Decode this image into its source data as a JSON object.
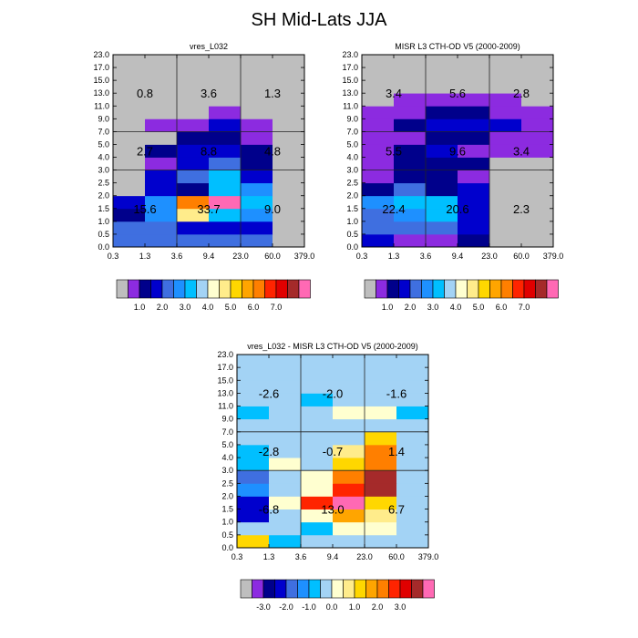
{
  "figure": {
    "title": "SH Mid-Lats JJA"
  },
  "x_tick_labels": [
    "0.3",
    "1.3",
    "3.6",
    "9.4",
    "23.0",
    "60.0",
    "379.0"
  ],
  "y_tick_labels": [
    "0.0",
    "0.5",
    "1.0",
    "1.5",
    "2.0",
    "2.5",
    "3.0",
    "4.0",
    "5.0",
    "7.0",
    "9.0",
    "11.0",
    "13.0",
    "15.0",
    "17.0",
    "23.0"
  ],
  "palette": {
    "abs": [
      "#bebebe",
      "#8c2be0",
      "#00008b",
      "#0000cd",
      "#3f6fe0",
      "#1e90ff",
      "#00bfff",
      "#a3d3f5",
      "#ffffd0",
      "#ffec8b",
      "#ffd700",
      "#ffa500",
      "#ff7f00",
      "#ff2400",
      "#e00000",
      "#a52a2a",
      "#ff69b4"
    ],
    "diff": [
      "#bebebe",
      "#8c2be0",
      "#00008b",
      "#0000cd",
      "#3f6fe0",
      "#1e90ff",
      "#00bfff",
      "#a3d3f5",
      "#ffffd0",
      "#ffec8b",
      "#ffd700",
      "#ffa500",
      "#ff7f00",
      "#ff2400",
      "#e00000",
      "#a52a2a",
      "#ff69b4"
    ]
  },
  "colorbars": {
    "abs": [
      "1.0",
      "2.0",
      "3.0",
      "4.0",
      "5.0",
      "6.0",
      "7.0"
    ],
    "diff": [
      "-3.0",
      "-2.0",
      "-1.0",
      "0.0",
      "1.0",
      "2.0",
      "3.0"
    ]
  },
  "chart_data": [
    {
      "type": "heatmap",
      "title": "vres_L032",
      "x_bins": [
        0.3,
        1.3,
        3.6,
        9.4,
        23.0,
        60.0,
        379.0
      ],
      "y_bins": [
        0.0,
        0.5,
        1.0,
        1.5,
        2.0,
        2.5,
        3.0,
        4.0,
        5.0,
        7.0,
        9.0,
        11.0,
        13.0,
        15.0,
        17.0,
        23.0
      ],
      "grid_levels": [
        [
          4,
          4,
          4,
          4,
          4,
          0
        ],
        [
          4,
          4,
          3,
          3,
          3,
          0
        ],
        [
          2,
          5,
          9,
          6,
          5,
          0
        ],
        [
          3,
          5,
          12,
          16,
          6,
          0
        ],
        [
          0,
          3,
          2,
          6,
          5,
          0
        ],
        [
          0,
          3,
          4,
          6,
          3,
          0
        ],
        [
          0,
          1,
          3,
          4,
          2,
          0
        ],
        [
          0,
          2,
          3,
          3,
          2,
          0
        ],
        [
          0,
          0,
          2,
          2,
          1,
          0
        ],
        [
          0,
          1,
          1,
          3,
          1,
          0
        ],
        [
          0,
          0,
          0,
          1,
          0,
          0
        ],
        [
          0,
          0,
          0,
          0,
          0,
          0
        ],
        [
          0,
          0,
          0,
          0,
          0,
          0
        ],
        [
          0,
          0,
          0,
          0,
          0,
          0
        ],
        [
          0,
          0,
          0,
          0,
          0,
          0
        ]
      ],
      "totals": [
        {
          "label": "0.8",
          "col": 0,
          "row": "top"
        },
        {
          "label": "3.6",
          "col": 1,
          "row": "top"
        },
        {
          "label": "1.3",
          "col": 2,
          "row": "top"
        },
        {
          "label": "2.7",
          "col": 0,
          "row": "mid"
        },
        {
          "label": "8.8",
          "col": 1,
          "row": "mid"
        },
        {
          "label": "4.8",
          "col": 2,
          "row": "mid"
        },
        {
          "label": "15.6",
          "col": 0,
          "row": "low"
        },
        {
          "label": "33.7",
          "col": 1,
          "row": "low"
        },
        {
          "label": "9.0",
          "col": 2,
          "row": "low"
        }
      ]
    },
    {
      "type": "heatmap",
      "title": "MISR L3 CTH-OD V5 (2000-2009)",
      "x_bins": [
        0.3,
        1.3,
        3.6,
        9.4,
        23.0,
        60.0,
        379.0
      ],
      "y_bins": [
        0.0,
        0.5,
        1.0,
        1.5,
        2.0,
        2.5,
        3.0,
        4.0,
        5.0,
        7.0,
        9.0,
        11.0,
        13.0,
        15.0,
        17.0,
        23.0
      ],
      "grid_levels": [
        [
          3,
          1,
          1,
          2,
          0,
          0
        ],
        [
          4,
          4,
          4,
          3,
          0,
          0
        ],
        [
          4,
          5,
          6,
          3,
          0,
          0
        ],
        [
          5,
          6,
          6,
          3,
          0,
          0
        ],
        [
          2,
          4,
          2,
          3,
          0,
          0
        ],
        [
          1,
          2,
          2,
          1,
          0,
          0
        ],
        [
          1,
          2,
          2,
          2,
          0,
          0
        ],
        [
          1,
          2,
          3,
          1,
          1,
          1
        ],
        [
          1,
          1,
          2,
          2,
          1,
          1
        ],
        [
          1,
          2,
          3,
          3,
          3,
          1
        ],
        [
          1,
          1,
          2,
          2,
          1,
          1
        ],
        [
          0,
          1,
          1,
          1,
          1,
          0
        ],
        [
          0,
          0,
          0,
          0,
          0,
          0
        ],
        [
          0,
          0,
          0,
          0,
          0,
          0
        ],
        [
          0,
          0,
          0,
          0,
          0,
          0
        ]
      ],
      "totals": [
        {
          "label": "3.4",
          "col": 0,
          "row": "top"
        },
        {
          "label": "5.6",
          "col": 1,
          "row": "top"
        },
        {
          "label": "2.8",
          "col": 2,
          "row": "top"
        },
        {
          "label": "5.5",
          "col": 0,
          "row": "mid"
        },
        {
          "label": "9.6",
          "col": 1,
          "row": "mid"
        },
        {
          "label": "3.4",
          "col": 2,
          "row": "mid"
        },
        {
          "label": "22.4",
          "col": 0,
          "row": "low"
        },
        {
          "label": "20.6",
          "col": 1,
          "row": "low"
        },
        {
          "label": "2.3",
          "col": 2,
          "row": "low"
        }
      ]
    },
    {
      "type": "heatmap",
      "title": "vres_L032 - MISR L3 CTH-OD V5 (2000-2009)",
      "x_bins": [
        0.3,
        1.3,
        3.6,
        9.4,
        23.0,
        60.0,
        379.0
      ],
      "y_bins": [
        0.0,
        0.5,
        1.0,
        1.5,
        2.0,
        2.5,
        3.0,
        4.0,
        5.0,
        7.0,
        9.0,
        11.0,
        13.0,
        15.0,
        17.0,
        23.0
      ],
      "grid_levels": [
        [
          10,
          6,
          7,
          7,
          7,
          7
        ],
        [
          7,
          7,
          6,
          8,
          8,
          7
        ],
        [
          3,
          7,
          8,
          11,
          9,
          7
        ],
        [
          3,
          8,
          13,
          16,
          10,
          7
        ],
        [
          5,
          7,
          8,
          13,
          15,
          7
        ],
        [
          4,
          7,
          8,
          12,
          15,
          7
        ],
        [
          6,
          8,
          7,
          10,
          12,
          7
        ],
        [
          6,
          7,
          7,
          9,
          12,
          7
        ],
        [
          7,
          7,
          7,
          7,
          10,
          7
        ],
        [
          7,
          7,
          7,
          7,
          7,
          7
        ],
        [
          6,
          7,
          7,
          8,
          8,
          6
        ],
        [
          7,
          7,
          6,
          7,
          7,
          7
        ],
        [
          7,
          7,
          7,
          7,
          7,
          7
        ],
        [
          7,
          7,
          7,
          7,
          7,
          7
        ],
        [
          7,
          7,
          7,
          7,
          7,
          7
        ]
      ],
      "totals": [
        {
          "label": "-2.6",
          "col": 0,
          "row": "top"
        },
        {
          "label": "-2.0",
          "col": 1,
          "row": "top"
        },
        {
          "label": "-1.6",
          "col": 2,
          "row": "top"
        },
        {
          "label": "-2.8",
          "col": 0,
          "row": "mid"
        },
        {
          "label": "-0.7",
          "col": 1,
          "row": "mid"
        },
        {
          "label": "1.4",
          "col": 2,
          "row": "mid"
        },
        {
          "label": "-6.8",
          "col": 0,
          "row": "low"
        },
        {
          "label": "13.0",
          "col": 1,
          "row": "low"
        },
        {
          "label": "6.7",
          "col": 2,
          "row": "low"
        }
      ]
    }
  ]
}
